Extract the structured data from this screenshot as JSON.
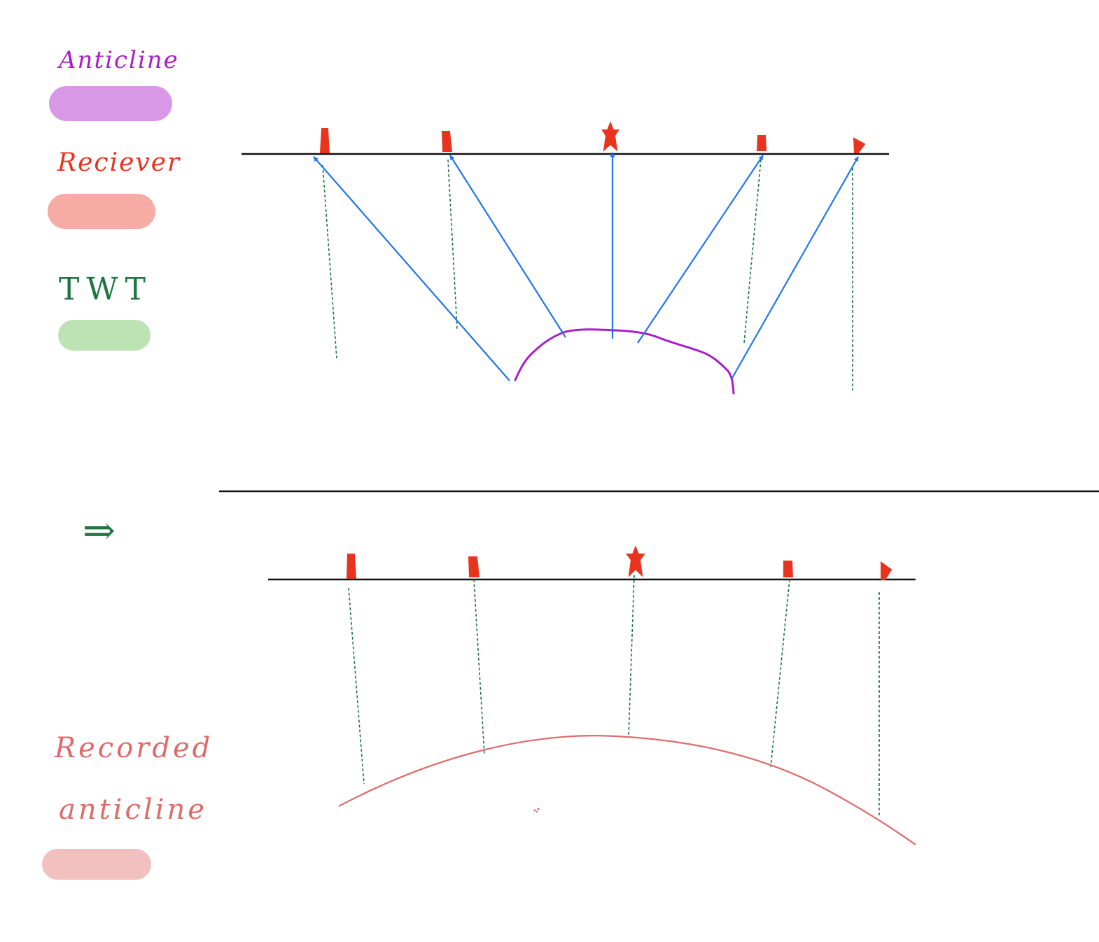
{
  "legend": {
    "anticline": {
      "label": "Anticline",
      "color": "#a81fc9",
      "swatch_color": "#d998e6"
    },
    "reciever": {
      "label": "Reciever",
      "color": "#e8341f",
      "swatch_color": "#f6aca4"
    },
    "twt": {
      "label": "TWT",
      "color": "#1d7540",
      "swatch_color": "#bde3b5"
    },
    "recorded_anticline": {
      "label_line1": "Recorded",
      "label_line2": "anticline",
      "color": "#e06a6a",
      "swatch_color": "#f3c0c0"
    }
  },
  "colors": {
    "surface": "#111111",
    "ray": "#1f75f0",
    "twt": "#1d7540",
    "divider": "#111111"
  },
  "top_panel": {
    "name": "actual-geometry",
    "reflector": "anticline",
    "receiver_count": 5,
    "ray_count": 5,
    "twt_line_count": 5
  },
  "bottom_panel": {
    "name": "recorded-section",
    "reflector": "recorded-anticline",
    "receiver_count": 5,
    "twt_line_count": 5
  },
  "implies_arrow": "⇒"
}
